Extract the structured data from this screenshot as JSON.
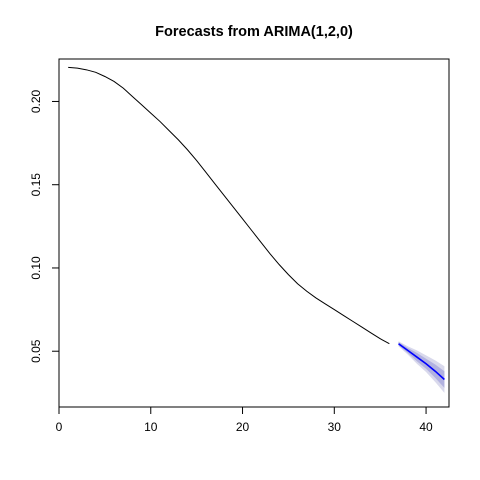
{
  "chart_data": {
    "type": "line",
    "title": "Forecasts from ARIMA(1,2,0)",
    "xlabel": "",
    "ylabel": "",
    "xlim": [
      0,
      42.5
    ],
    "ylim": [
      0.0165,
      0.2255
    ],
    "x_ticks": [
      0,
      10,
      20,
      30,
      40
    ],
    "y_ticks": [
      0.05,
      0.1,
      0.15,
      0.2
    ],
    "y_tick_labels": [
      "0.05",
      "0.10",
      "0.15",
      "0.20"
    ],
    "grid": false,
    "legend": "none",
    "observed": {
      "color": "#000000",
      "x": [
        1,
        2,
        3,
        4,
        5,
        6,
        7,
        8,
        9,
        10,
        11,
        12,
        13,
        14,
        15,
        16,
        17,
        18,
        19,
        20,
        21,
        22,
        23,
        24,
        25,
        26,
        27,
        28,
        29,
        30,
        31,
        32,
        33,
        34,
        35,
        36
      ],
      "y": [
        0.2205,
        0.22,
        0.219,
        0.2175,
        0.215,
        0.212,
        0.208,
        0.203,
        0.198,
        0.193,
        0.188,
        0.1825,
        0.177,
        0.171,
        0.1645,
        0.1575,
        0.1505,
        0.1435,
        0.1365,
        0.1295,
        0.1225,
        0.1155,
        0.1085,
        0.102,
        0.096,
        0.0905,
        0.086,
        0.082,
        0.0785,
        0.075,
        0.0715,
        0.068,
        0.0645,
        0.061,
        0.0575,
        0.0545
      ]
    },
    "forecast": {
      "color": "#0000ff",
      "x": [
        37,
        38,
        39,
        40,
        41,
        42
      ],
      "mean": [
        0.0545,
        0.0505,
        0.0465,
        0.0425,
        0.038,
        0.033
      ],
      "lower80": [
        0.0535,
        0.049,
        0.044,
        0.0395,
        0.034,
        0.028
      ],
      "upper80": [
        0.0555,
        0.052,
        0.049,
        0.0455,
        0.042,
        0.038
      ],
      "lower95": [
        0.053,
        0.048,
        0.0425,
        0.0375,
        0.0315,
        0.025
      ],
      "upper95": [
        0.056,
        0.053,
        0.0505,
        0.0475,
        0.0445,
        0.041
      ],
      "band80_color": "#b2b2e0",
      "band95_color": "#d9d9ec"
    }
  }
}
